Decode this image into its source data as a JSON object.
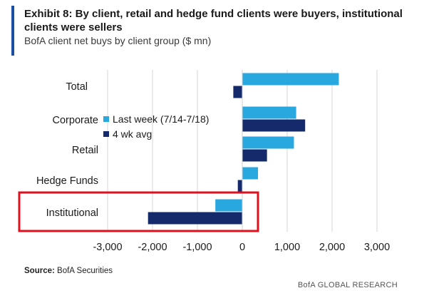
{
  "header": {
    "title": "Exhibit 8: By client, retail and hedge fund clients were buyers, institutional clients were sellers",
    "subtitle": "BofA client net buys by client group ($ mn)"
  },
  "footer": {
    "source_label": "Source:",
    "source_text": "BofA Securities",
    "brand": "BofA GLOBAL RESEARCH"
  },
  "colors": {
    "accent": "#1c4fa3",
    "last_week": "#29a8e0",
    "four_wk_avg": "#152a6b",
    "highlight_box": "#e0101e",
    "grid": "#d6d6d6"
  },
  "chart_data": {
    "type": "bar",
    "orientation": "horizontal",
    "title": "Exhibit 8: By client, retail and hedge fund clients were buyers, institutional clients were sellers",
    "subtitle": "BofA client net buys by client group ($ mn)",
    "categories": [
      "Total",
      "Corporate",
      "Retail",
      "Hedge Funds",
      "Institutional"
    ],
    "series": [
      {
        "name": "Last week (7/14-7/18)",
        "values": [
          2150,
          1200,
          1150,
          350,
          -600
        ]
      },
      {
        "name": "4 wk avg",
        "values": [
          -200,
          1400,
          550,
          -100,
          -2100
        ]
      }
    ],
    "xlim": [
      -3000,
      3000
    ],
    "xticks": [
      -3000,
      -2000,
      -1000,
      0,
      1000,
      2000,
      3000
    ],
    "xtick_labels": [
      "-3,000",
      "-2,000",
      "-1,000",
      "0",
      "1,000",
      "2,000",
      "3,000"
    ],
    "grid": true,
    "legend_position": "upper-left-center",
    "highlighted_category": "Institutional",
    "xlabel": "",
    "ylabel": ""
  }
}
